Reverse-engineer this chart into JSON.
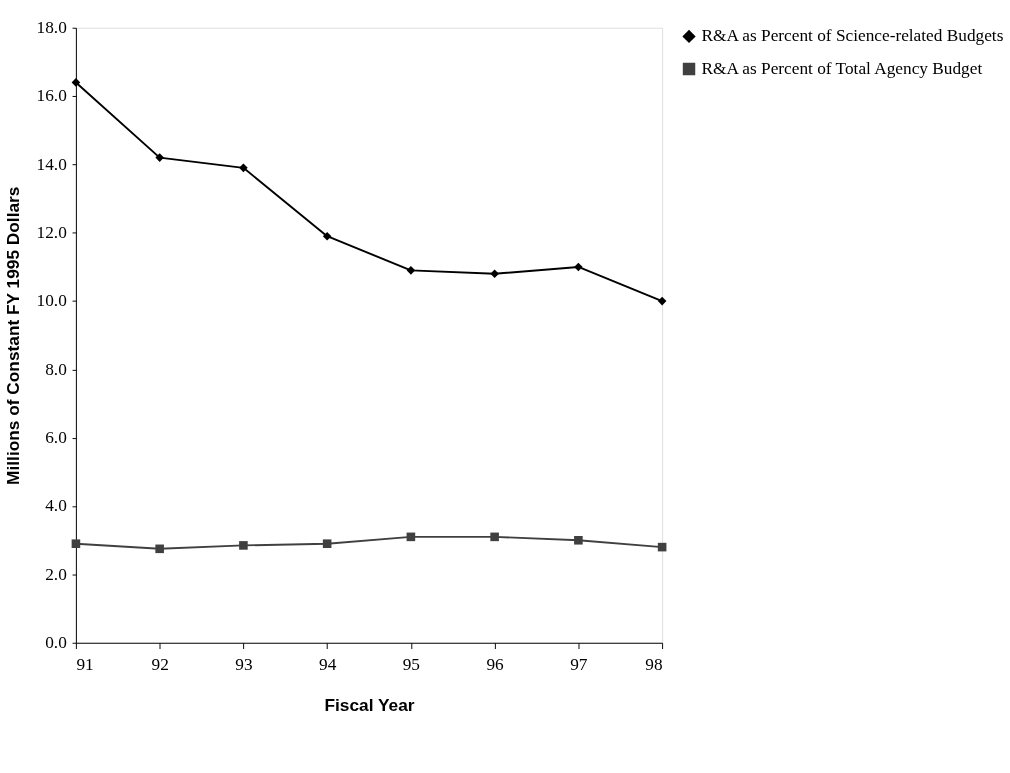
{
  "chart_data": {
    "type": "line",
    "xlabel": "Fiscal Year",
    "ylabel": "Millions of Constant FY 1995 Dollars",
    "categories": [
      "91",
      "92",
      "93",
      "94",
      "95",
      "96",
      "97",
      "98"
    ],
    "series": [
      {
        "name": "R&A as Percent of Science-related Budgets",
        "color": "#000000",
        "marker": "diamond",
        "values": [
          16.4,
          14.2,
          13.9,
          11.9,
          10.9,
          10.8,
          11.0,
          10.0
        ]
      },
      {
        "name": "R&A as Percent of Total Agency Budget",
        "color": "#404040",
        "marker": "square",
        "values": [
          2.9,
          2.75,
          2.85,
          2.9,
          3.1,
          3.1,
          3.0,
          2.8
        ]
      }
    ],
    "ylim": [
      0,
      18
    ],
    "yticks": [
      {
        "value": 0,
        "label": "0.0"
      },
      {
        "value": 2,
        "label": "2.0"
      },
      {
        "value": 4,
        "label": "4.0"
      },
      {
        "value": 6,
        "label": "6.0"
      },
      {
        "value": 8,
        "label": "8.0"
      },
      {
        "value": 10,
        "label": "10.0"
      },
      {
        "value": 12,
        "label": "12.0"
      },
      {
        "value": 14,
        "label": "14.0"
      },
      {
        "value": 16,
        "label": "16.0"
      },
      {
        "value": 18,
        "label": "18.0"
      }
    ],
    "grid": false,
    "legend": "right",
    "line_style": "solid"
  }
}
